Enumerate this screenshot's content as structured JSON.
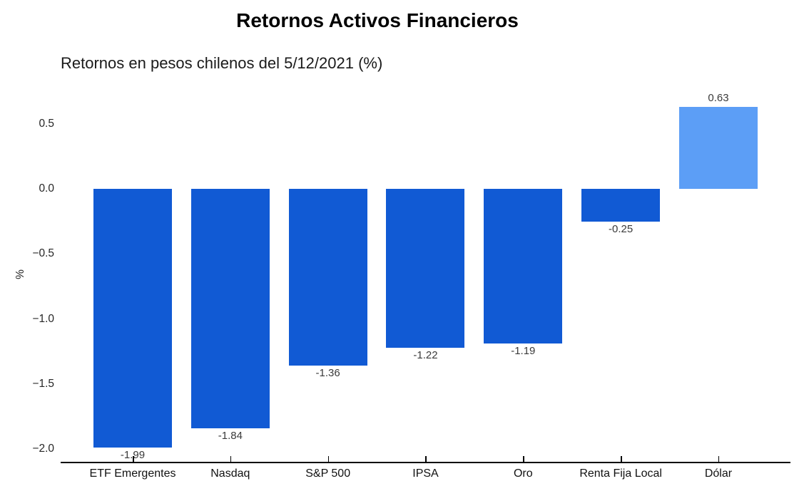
{
  "header": {
    "title": "Retornos Activos Financieros",
    "subtitle": "Retornos en pesos chilenos del 5/12/2021 (%)"
  },
  "chart_data": {
    "type": "bar",
    "title": "Retornos Activos Financieros",
    "subtitle": "Retornos en pesos chilenos del 5/12/2021 (%)",
    "xlabel": "",
    "ylabel": "%",
    "categories": [
      "ETF Emergentes",
      "Nasdaq",
      "S&P 500",
      "IPSA",
      "Oro",
      "Renta Fija Local",
      "Dólar"
    ],
    "values": [
      -1.99,
      -1.84,
      -1.36,
      -1.22,
      -1.19,
      -0.25,
      0.63
    ],
    "value_labels": [
      "-1.99",
      "-1.84",
      "-1.36",
      "-1.22",
      "-1.19",
      "-0.25",
      "0.63"
    ],
    "yticks": [
      {
        "label": "0.5",
        "value": 0.5
      },
      {
        "label": "0.0",
        "value": 0.0
      },
      {
        "label": "−0.5",
        "value": -0.5
      },
      {
        "label": "−1.0",
        "value": -1.0
      },
      {
        "label": "−1.5",
        "value": -1.5
      },
      {
        "label": "−2.0",
        "value": -2.0
      }
    ],
    "ylim": [
      -2.11,
      0.73
    ],
    "grid": false,
    "legend": null,
    "colors": {
      "positive_bar": "#5C9EF6",
      "negative_bar": "#115AD4",
      "axis": "#000000",
      "value_label": "#3a3a3a",
      "tick_label": "#262626",
      "background": "#ffffff"
    }
  }
}
